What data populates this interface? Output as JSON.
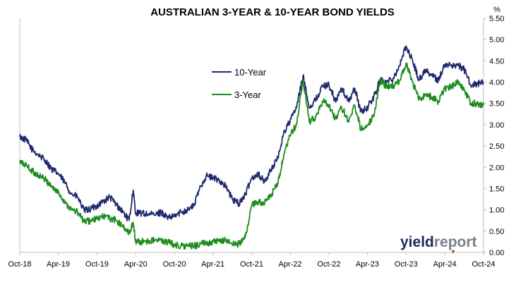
{
  "chart_data": {
    "type": "line",
    "title": "AUSTRALIAN 3-YEAR & 10-YEAR BOND YIELDS",
    "y_unit": "%",
    "ylim": [
      0,
      5.5
    ],
    "y_ticks": [
      "0.00",
      "0.50",
      "1.00",
      "1.50",
      "2.00",
      "2.50",
      "3.00",
      "3.50",
      "4.00",
      "4.50",
      "5.00",
      "5.50"
    ],
    "x_ticks": [
      "Oct-18",
      "Apr-19",
      "Oct-19",
      "Apr-20",
      "Oct-20",
      "Apr-21",
      "Oct-21",
      "Apr-22",
      "Oct-22",
      "Apr-23",
      "Oct-23",
      "Apr-24",
      "Oct-24"
    ],
    "xlim": [
      "2018-10-01",
      "2024-10-01"
    ],
    "grid": false,
    "legend_position": "center-left",
    "series": [
      {
        "name": "10-Year",
        "color": "#1f2a6e",
        "points": [
          [
            "2018-10-01",
            2.72
          ],
          [
            "2018-11-01",
            2.63
          ],
          [
            "2018-12-01",
            2.4
          ],
          [
            "2019-01-01",
            2.28
          ],
          [
            "2019-02-01",
            2.15
          ],
          [
            "2019-03-01",
            1.95
          ],
          [
            "2019-04-01",
            1.85
          ],
          [
            "2019-05-01",
            1.65
          ],
          [
            "2019-06-01",
            1.38
          ],
          [
            "2019-07-01",
            1.3
          ],
          [
            "2019-08-01",
            0.98
          ],
          [
            "2019-09-01",
            1.02
          ],
          [
            "2019-10-01",
            1.1
          ],
          [
            "2019-11-01",
            1.2
          ],
          [
            "2019-12-01",
            1.3
          ],
          [
            "2020-01-01",
            1.12
          ],
          [
            "2020-02-01",
            0.95
          ],
          [
            "2020-03-01",
            0.75
          ],
          [
            "2020-03-20",
            1.45
          ],
          [
            "2020-04-01",
            0.92
          ],
          [
            "2020-05-01",
            0.92
          ],
          [
            "2020-06-01",
            0.9
          ],
          [
            "2020-07-01",
            0.88
          ],
          [
            "2020-08-01",
            0.95
          ],
          [
            "2020-09-01",
            0.8
          ],
          [
            "2020-10-01",
            0.85
          ],
          [
            "2020-11-01",
            0.95
          ],
          [
            "2020-12-01",
            1.0
          ],
          [
            "2021-01-01",
            1.1
          ],
          [
            "2021-02-01",
            1.55
          ],
          [
            "2021-03-01",
            1.8
          ],
          [
            "2021-04-01",
            1.75
          ],
          [
            "2021-05-01",
            1.7
          ],
          [
            "2021-06-01",
            1.55
          ],
          [
            "2021-07-01",
            1.25
          ],
          [
            "2021-08-01",
            1.15
          ],
          [
            "2021-09-01",
            1.35
          ],
          [
            "2021-10-01",
            1.75
          ],
          [
            "2021-11-01",
            1.85
          ],
          [
            "2021-12-01",
            1.65
          ],
          [
            "2022-01-01",
            1.95
          ],
          [
            "2022-02-01",
            2.2
          ],
          [
            "2022-03-01",
            2.8
          ],
          [
            "2022-04-01",
            3.1
          ],
          [
            "2022-05-01",
            3.4
          ],
          [
            "2022-06-01",
            4.15
          ],
          [
            "2022-07-01",
            3.4
          ],
          [
            "2022-08-01",
            3.6
          ],
          [
            "2022-09-01",
            3.9
          ],
          [
            "2022-10-01",
            3.95
          ],
          [
            "2022-11-01",
            3.55
          ],
          [
            "2022-12-01",
            3.85
          ],
          [
            "2023-01-01",
            3.55
          ],
          [
            "2023-02-01",
            3.85
          ],
          [
            "2023-03-01",
            3.3
          ],
          [
            "2023-04-01",
            3.4
          ],
          [
            "2023-05-01",
            3.65
          ],
          [
            "2023-06-01",
            4.05
          ],
          [
            "2023-07-01",
            4.0
          ],
          [
            "2023-08-01",
            4.1
          ],
          [
            "2023-09-01",
            4.4
          ],
          [
            "2023-10-01",
            4.85
          ],
          [
            "2023-11-01",
            4.5
          ],
          [
            "2023-12-01",
            4.05
          ],
          [
            "2024-01-01",
            4.3
          ],
          [
            "2024-02-01",
            4.15
          ],
          [
            "2024-03-01",
            4.05
          ],
          [
            "2024-04-01",
            4.4
          ],
          [
            "2024-05-01",
            4.4
          ],
          [
            "2024-06-01",
            4.4
          ],
          [
            "2024-07-01",
            4.3
          ],
          [
            "2024-08-01",
            3.95
          ],
          [
            "2024-09-01",
            3.95
          ],
          [
            "2024-10-01",
            4.0
          ]
        ]
      },
      {
        "name": "3-Year",
        "color": "#1e8c1e",
        "points": [
          [
            "2018-10-01",
            2.12
          ],
          [
            "2018-11-01",
            2.05
          ],
          [
            "2018-12-01",
            1.9
          ],
          [
            "2019-01-01",
            1.8
          ],
          [
            "2019-02-01",
            1.7
          ],
          [
            "2019-03-01",
            1.55
          ],
          [
            "2019-04-01",
            1.4
          ],
          [
            "2019-05-01",
            1.2
          ],
          [
            "2019-06-01",
            1.0
          ],
          [
            "2019-07-01",
            0.95
          ],
          [
            "2019-08-01",
            0.72
          ],
          [
            "2019-09-01",
            0.75
          ],
          [
            "2019-10-01",
            0.78
          ],
          [
            "2019-11-01",
            0.85
          ],
          [
            "2019-12-01",
            0.8
          ],
          [
            "2020-01-01",
            0.75
          ],
          [
            "2020-02-01",
            0.6
          ],
          [
            "2020-03-01",
            0.45
          ],
          [
            "2020-03-20",
            0.7
          ],
          [
            "2020-04-01",
            0.25
          ],
          [
            "2020-05-01",
            0.25
          ],
          [
            "2020-06-01",
            0.27
          ],
          [
            "2020-07-01",
            0.28
          ],
          [
            "2020-08-01",
            0.28
          ],
          [
            "2020-09-01",
            0.24
          ],
          [
            "2020-10-01",
            0.18
          ],
          [
            "2020-11-01",
            0.15
          ],
          [
            "2020-12-01",
            0.15
          ],
          [
            "2021-01-01",
            0.15
          ],
          [
            "2021-02-01",
            0.2
          ],
          [
            "2021-03-01",
            0.22
          ],
          [
            "2021-04-01",
            0.25
          ],
          [
            "2021-05-01",
            0.25
          ],
          [
            "2021-06-01",
            0.3
          ],
          [
            "2021-07-01",
            0.2
          ],
          [
            "2021-08-01",
            0.2
          ],
          [
            "2021-09-01",
            0.35
          ],
          [
            "2021-10-01",
            1.1
          ],
          [
            "2021-11-01",
            1.2
          ],
          [
            "2021-12-01",
            1.15
          ],
          [
            "2022-01-01",
            1.35
          ],
          [
            "2022-02-01",
            1.6
          ],
          [
            "2022-03-01",
            2.25
          ],
          [
            "2022-04-01",
            2.75
          ],
          [
            "2022-05-01",
            3.0
          ],
          [
            "2022-06-01",
            4.05
          ],
          [
            "2022-07-01",
            3.05
          ],
          [
            "2022-08-01",
            3.2
          ],
          [
            "2022-09-01",
            3.55
          ],
          [
            "2022-10-01",
            3.45
          ],
          [
            "2022-11-01",
            3.15
          ],
          [
            "2022-12-01",
            3.4
          ],
          [
            "2023-01-01",
            3.1
          ],
          [
            "2023-02-01",
            3.45
          ],
          [
            "2023-03-01",
            2.9
          ],
          [
            "2023-04-01",
            3.0
          ],
          [
            "2023-05-01",
            3.2
          ],
          [
            "2023-06-01",
            4.05
          ],
          [
            "2023-07-01",
            3.9
          ],
          [
            "2023-08-01",
            3.9
          ],
          [
            "2023-09-01",
            4.05
          ],
          [
            "2023-10-01",
            4.45
          ],
          [
            "2023-11-01",
            4.0
          ],
          [
            "2023-12-01",
            3.6
          ],
          [
            "2024-01-01",
            3.7
          ],
          [
            "2024-02-01",
            3.65
          ],
          [
            "2024-03-01",
            3.55
          ],
          [
            "2024-04-01",
            3.85
          ],
          [
            "2024-05-01",
            3.9
          ],
          [
            "2024-06-01",
            4.0
          ],
          [
            "2024-07-01",
            3.85
          ],
          [
            "2024-08-01",
            3.5
          ],
          [
            "2024-09-01",
            3.5
          ],
          [
            "2024-10-01",
            3.45
          ]
        ]
      }
    ]
  },
  "watermark": {
    "text_dark": "yield",
    "text_light": "report",
    "color_dark": "#1f2a5a",
    "color_light": "#7b7f8c",
    "accent": "#d11a1a"
  }
}
